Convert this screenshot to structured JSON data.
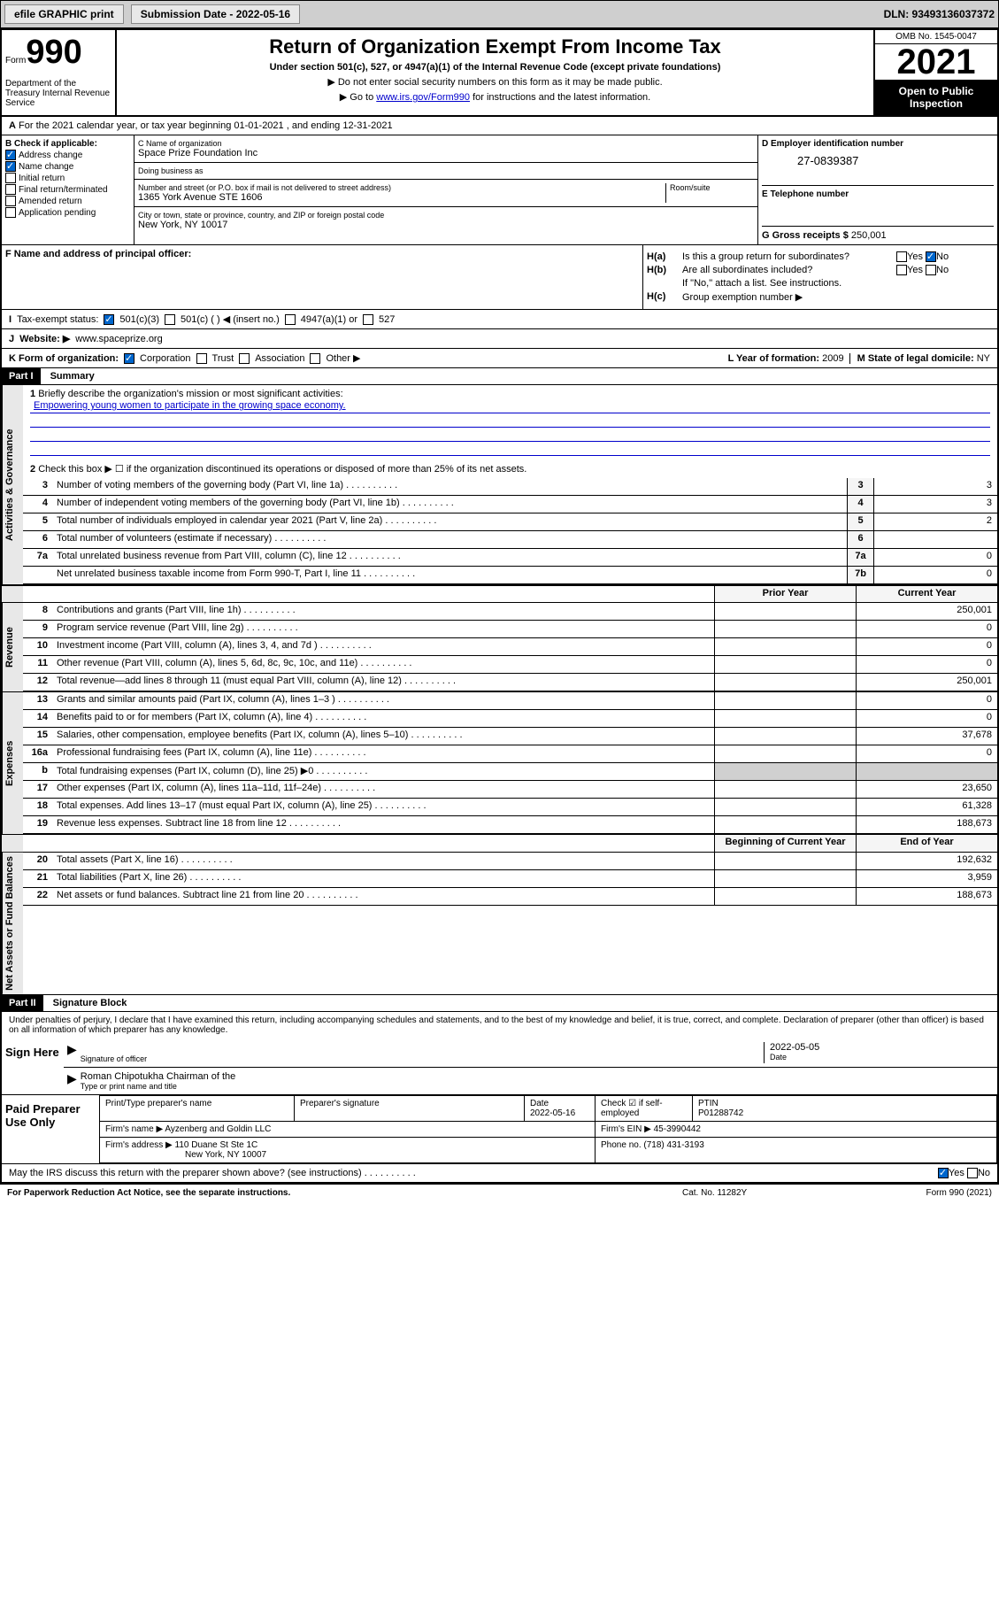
{
  "toolbar": {
    "efile_btn": "efile GRAPHIC print",
    "sub_date_label": "Submission Date - 2022-05-16",
    "dln": "DLN: 93493136037372"
  },
  "header": {
    "form_word": "Form",
    "form_num": "990",
    "dept": "Department of the Treasury Internal Revenue Service",
    "title": "Return of Organization Exempt From Income Tax",
    "subtitle": "Under section 501(c), 527, or 4947(a)(1) of the Internal Revenue Code (except private foundations)",
    "instr1": "▶ Do not enter social security numbers on this form as it may be made public.",
    "instr2_pre": "▶ Go to ",
    "instr2_link": "www.irs.gov/Form990",
    "instr2_post": " for instructions and the latest information.",
    "omb": "OMB No. 1545-0047",
    "year": "2021",
    "open_public": "Open to Public Inspection"
  },
  "period": {
    "text": "For the 2021 calendar year, or tax year beginning 01-01-2021   , and ending 12-31-2021"
  },
  "section_b": {
    "label": "B Check if applicable:",
    "items": [
      "Address change",
      "Name change",
      "Initial return",
      "Final return/terminated",
      "Amended return",
      "Application pending"
    ],
    "checked": [
      true,
      true,
      false,
      false,
      false,
      false
    ]
  },
  "org": {
    "name_label": "C Name of organization",
    "name": "Space Prize Foundation Inc",
    "dba_label": "Doing business as",
    "dba": "",
    "addr_label": "Number and street (or P.O. box if mail is not delivered to street address)",
    "room_label": "Room/suite",
    "addr": "1365 York Avenue STE 1606",
    "city_label": "City or town, state or province, country, and ZIP or foreign postal code",
    "city": "New York, NY  10017"
  },
  "ein": {
    "label": "D Employer identification number",
    "value": "27-0839387"
  },
  "phone": {
    "label": "E Telephone number",
    "value": ""
  },
  "gross": {
    "label": "G Gross receipts $",
    "value": "250,001"
  },
  "officer": {
    "label": "F  Name and address of principal officer:",
    "value": ""
  },
  "h": {
    "a_label": "H(a)",
    "a_text": "Is this a group return for subordinates?",
    "a_yes": "Yes",
    "a_no": "No",
    "b_label": "H(b)",
    "b_text": "Are all subordinates included?",
    "b_yes": "Yes",
    "b_no": "No",
    "b_note": "If \"No,\" attach a list. See instructions.",
    "c_label": "H(c)",
    "c_text": "Group exemption number ▶"
  },
  "tax_status": {
    "label": "I",
    "text": "Tax-exempt status:",
    "opts": [
      "501(c)(3)",
      "501(c) (  ) ◀ (insert no.)",
      "4947(a)(1) or",
      "527"
    ]
  },
  "website": {
    "label": "J",
    "text": "Website: ▶",
    "value": "www.spaceprize.org"
  },
  "form_org": {
    "label": "K Form of organization:",
    "opts": [
      "Corporation",
      "Trust",
      "Association",
      "Other ▶"
    ]
  },
  "year_formed": {
    "label": "L Year of formation:",
    "value": "2009"
  },
  "domicile": {
    "label": "M State of legal domicile:",
    "value": "NY"
  },
  "part1": {
    "header": "Part I",
    "title": "Summary",
    "line1_label": "1",
    "line1_text": "Briefly describe the organization's mission or most significant activities:",
    "mission": "Empowering young women to participate in the growing space economy.",
    "line2_label": "2",
    "line2_text": "Check this box ▶ ☐  if the organization discontinued its operations or disposed of more than 25% of its net assets.",
    "gov_lines": [
      {
        "num": "3",
        "text": "Number of voting members of the governing body (Part VI, line 1a)",
        "box": "3",
        "val": "3"
      },
      {
        "num": "4",
        "text": "Number of independent voting members of the governing body (Part VI, line 1b)",
        "box": "4",
        "val": "3"
      },
      {
        "num": "5",
        "text": "Total number of individuals employed in calendar year 2021 (Part V, line 2a)",
        "box": "5",
        "val": "2"
      },
      {
        "num": "6",
        "text": "Total number of volunteers (estimate if necessary)",
        "box": "6",
        "val": ""
      },
      {
        "num": "7a",
        "text": "Total unrelated business revenue from Part VIII, column (C), line 12",
        "box": "7a",
        "val": "0"
      },
      {
        "num": "",
        "text": "Net unrelated business taxable income from Form 990-T, Part I, line 11",
        "box": "7b",
        "val": "0"
      }
    ],
    "col_prior": "Prior Year",
    "col_current": "Current Year",
    "rev_lines": [
      {
        "num": "8",
        "text": "Contributions and grants (Part VIII, line 1h)",
        "prior": "",
        "current": "250,001"
      },
      {
        "num": "9",
        "text": "Program service revenue (Part VIII, line 2g)",
        "prior": "",
        "current": "0"
      },
      {
        "num": "10",
        "text": "Investment income (Part VIII, column (A), lines 3, 4, and 7d )",
        "prior": "",
        "current": "0"
      },
      {
        "num": "11",
        "text": "Other revenue (Part VIII, column (A), lines 5, 6d, 8c, 9c, 10c, and 11e)",
        "prior": "",
        "current": "0"
      },
      {
        "num": "12",
        "text": "Total revenue—add lines 8 through 11 (must equal Part VIII, column (A), line 12)",
        "prior": "",
        "current": "250,001"
      }
    ],
    "exp_lines": [
      {
        "num": "13",
        "text": "Grants and similar amounts paid (Part IX, column (A), lines 1–3 )",
        "prior": "",
        "current": "0"
      },
      {
        "num": "14",
        "text": "Benefits paid to or for members (Part IX, column (A), line 4)",
        "prior": "",
        "current": "0"
      },
      {
        "num": "15",
        "text": "Salaries, other compensation, employee benefits (Part IX, column (A), lines 5–10)",
        "prior": "",
        "current": "37,678"
      },
      {
        "num": "16a",
        "text": "Professional fundraising fees (Part IX, column (A), line 11e)",
        "prior": "",
        "current": "0"
      },
      {
        "num": "b",
        "text": "Total fundraising expenses (Part IX, column (D), line 25) ▶0",
        "prior": "shaded",
        "current": "shaded"
      },
      {
        "num": "17",
        "text": "Other expenses (Part IX, column (A), lines 11a–11d, 11f–24e)",
        "prior": "",
        "current": "23,650"
      },
      {
        "num": "18",
        "text": "Total expenses. Add lines 13–17 (must equal Part IX, column (A), line 25)",
        "prior": "",
        "current": "61,328"
      },
      {
        "num": "19",
        "text": "Revenue less expenses. Subtract line 18 from line 12",
        "prior": "",
        "current": "188,673"
      }
    ],
    "col_begin": "Beginning of Current Year",
    "col_end": "End of Year",
    "net_lines": [
      {
        "num": "20",
        "text": "Total assets (Part X, line 16)",
        "begin": "",
        "end": "192,632"
      },
      {
        "num": "21",
        "text": "Total liabilities (Part X, line 26)",
        "begin": "",
        "end": "3,959"
      },
      {
        "num": "22",
        "text": "Net assets or fund balances. Subtract line 21 from line 20",
        "begin": "",
        "end": "188,673"
      }
    ],
    "side_gov": "Activities & Governance",
    "side_rev": "Revenue",
    "side_exp": "Expenses",
    "side_net": "Net Assets or Fund Balances"
  },
  "part2": {
    "header": "Part II",
    "title": "Signature Block",
    "declaration": "Under penalties of perjury, I declare that I have examined this return, including accompanying schedules and statements, and to the best of my knowledge and belief, it is true, correct, and complete. Declaration of preparer (other than officer) is based on all information of which preparer has any knowledge.",
    "sign_here": "Sign Here",
    "sig_officer": "Signature of officer",
    "sig_date": "Date",
    "sig_date_val": "2022-05-05",
    "officer_name": "Roman Chipotukha Chairman of the",
    "name_title_label": "Type or print name and title",
    "paid_label": "Paid Preparer Use Only",
    "prep_name_label": "Print/Type preparer's name",
    "prep_sig_label": "Preparer's signature",
    "prep_date_label": "Date",
    "prep_date": "2022-05-16",
    "check_self": "Check ☑ if self-employed",
    "ptin_label": "PTIN",
    "ptin": "P01288742",
    "firm_name_label": "Firm's name    ▶",
    "firm_name": "Ayzenberg and Goldin LLC",
    "firm_ein_label": "Firm's EIN ▶",
    "firm_ein": "45-3990442",
    "firm_addr_label": "Firm's address ▶",
    "firm_addr1": "110 Duane St Ste 1C",
    "firm_addr2": "New York, NY  10007",
    "phone_label": "Phone no.",
    "phone": "(718) 431-3193",
    "discuss": "May the IRS discuss this return with the preparer shown above? (see instructions)",
    "yes": "Yes",
    "no": "No"
  },
  "footer": {
    "left": "For Paperwork Reduction Act Notice, see the separate instructions.",
    "mid": "Cat. No. 11282Y",
    "right": "Form 990 (2021)"
  }
}
